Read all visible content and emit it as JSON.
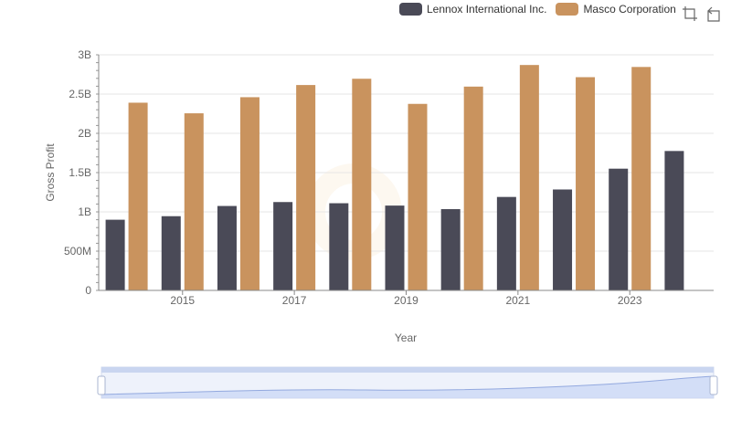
{
  "chart_data": {
    "type": "bar",
    "xlabel": "Year",
    "ylabel": "Gross Profit",
    "ylim": [
      0,
      3000000000
    ],
    "y_ticks": [
      0,
      500000000,
      1000000000,
      1500000000,
      2000000000,
      2500000000,
      3000000000
    ],
    "y_tick_labels": [
      "0",
      "500M",
      "1B",
      "1.5B",
      "2B",
      "2.5B",
      "3B"
    ],
    "categories": [
      "2014",
      "2015",
      "2016",
      "2017",
      "2018",
      "2019",
      "2020",
      "2021",
      "2022",
      "2023",
      "2024"
    ],
    "x_tick_labels": [
      "2015",
      "2017",
      "2019",
      "2021",
      "2023"
    ],
    "series": [
      {
        "name": "Lennox International Inc.",
        "color": "#4a4a57",
        "values": [
          900000000,
          945000000,
          1075000000,
          1125000000,
          1110000000,
          1080000000,
          1035000000,
          1190000000,
          1285000000,
          1550000000,
          1775000000
        ]
      },
      {
        "name": "Masco Corporation",
        "color": "#c9935e",
        "values": [
          2390000000,
          2255000000,
          2460000000,
          2615000000,
          2695000000,
          2375000000,
          2595000000,
          2870000000,
          2715000000,
          2845000000,
          null
        ]
      }
    ]
  },
  "toolbox": {
    "restore_icon": "restore-icon",
    "zoom_icon": "zoom-icon"
  }
}
